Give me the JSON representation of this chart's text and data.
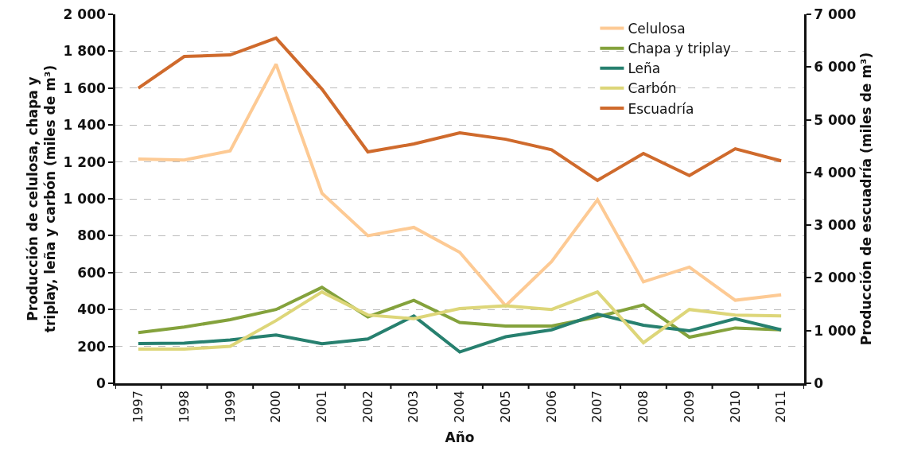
{
  "chart_data": {
    "type": "line",
    "xlabel": "Año",
    "ylabel": "Producción de celulosa, chapa y\ntriplay, leña y carbón (miles de m³)",
    "y2label": "Producción de escuadría (miles de m³)",
    "categories": [
      "1997",
      "1998",
      "1999",
      "2000",
      "2001",
      "2002",
      "2003",
      "2004",
      "2005",
      "2006",
      "2007",
      "2008",
      "2009",
      "2010",
      "2011"
    ],
    "series": [
      {
        "name": "Celulosa",
        "color": "#fdca94",
        "values": [
          1215,
          1210,
          1260,
          1730,
          1030,
          800,
          845,
          710,
          420,
          660,
          995,
          550,
          630,
          450,
          480
        ]
      },
      {
        "name": "Chapa y triplay",
        "color": "#84a23c",
        "values": [
          275,
          305,
          345,
          400,
          520,
          360,
          450,
          330,
          310,
          310,
          360,
          425,
          250,
          300,
          290
        ]
      },
      {
        "name": "Leña",
        "color": "#27806f",
        "values": [
          215,
          218,
          235,
          262,
          215,
          240,
          365,
          170,
          252,
          290,
          375,
          315,
          285,
          350,
          290
        ]
      },
      {
        "name": "Carbón",
        "color": "#ddd679",
        "values": [
          185,
          185,
          200,
          340,
          495,
          370,
          350,
          405,
          420,
          400,
          495,
          220,
          400,
          370,
          365
        ]
      },
      {
        "name": "Escuadría",
        "color": "#cf6a2c",
        "axis": "y2",
        "values": [
          5600,
          6200,
          6230,
          6550,
          5580,
          4390,
          4540,
          4750,
          4630,
          4430,
          3850,
          4360,
          3940,
          4450,
          4220
        ]
      }
    ],
    "ylim": [
      0,
      2000
    ],
    "yticks": [
      0,
      200,
      400,
      600,
      800,
      {
        "value": 1000,
        "label": "1 000"
      },
      {
        "value": 1200,
        "label": "1 200"
      },
      {
        "value": 1400,
        "label": "1 400"
      },
      {
        "value": 1600,
        "label": "1 600"
      },
      {
        "value": 1800,
        "label": "1 800"
      },
      {
        "value": 2000,
        "label": "2 000"
      }
    ],
    "y2lim": [
      0,
      7000
    ],
    "y2ticks": [
      0,
      {
        "value": 1000,
        "label": "1 000"
      },
      {
        "value": 2000,
        "label": "2 000"
      },
      {
        "value": 3000,
        "label": "3 000"
      },
      {
        "value": 4000,
        "label": "4 000"
      },
      {
        "value": 5000,
        "label": "5 000"
      },
      {
        "value": 6000,
        "label": "6 000"
      },
      {
        "value": 7000,
        "label": "7 000"
      }
    ],
    "grid": "y",
    "legend": "top right",
    "marker": "none",
    "line_style": "solid"
  }
}
